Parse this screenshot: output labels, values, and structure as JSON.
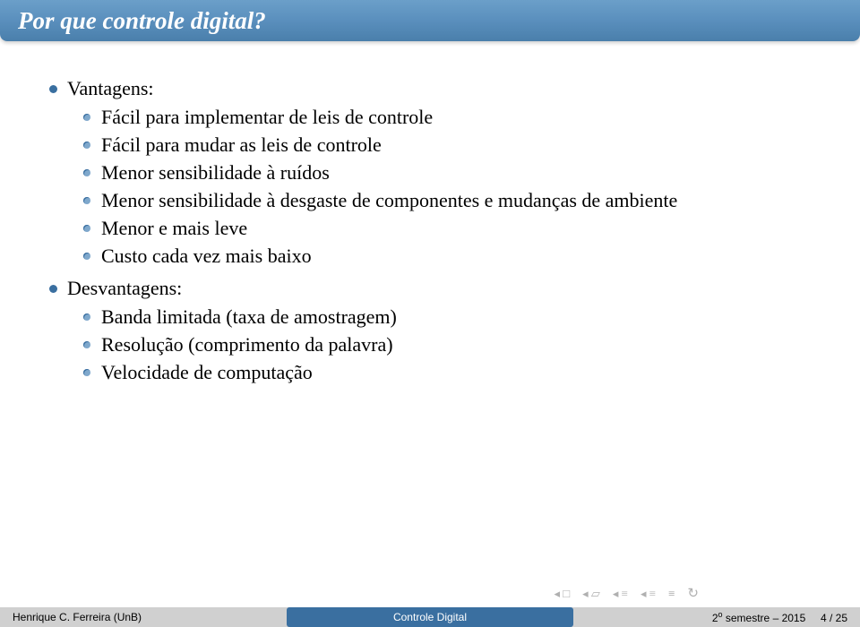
{
  "title": "Por que controle digital?",
  "list": {
    "advantages_label": "Vantagens:",
    "advantages": [
      "Fácil para implementar de leis de controle",
      "Fácil para mudar as leis de controle",
      "Menor sensibilidade à ruídos",
      "Menor sensibilidade à desgaste de componentes e mudanças de ambiente",
      "Menor e mais leve",
      "Custo cada vez mais baixo"
    ],
    "disadvantages_label": "Desvantagens:",
    "disadvantages": [
      "Banda limitada (taxa de amostragem)",
      "Resolução (comprimento da palavra)",
      "Velocidade de computação"
    ]
  },
  "footer": {
    "left": "Henrique C. Ferreira (UnB)",
    "center": "Controle Digital",
    "right_prefix": "2",
    "right_sup": "o",
    "right_suffix": " semestre – 2015",
    "page_current": "4",
    "page_sep": " / ",
    "page_total": "25"
  },
  "colors": {
    "title_bar_top": "#6b9fc9",
    "title_bar_bottom": "#4a7fab",
    "title_text": "#ffffff",
    "bullet_top": "#3a6fa0",
    "bullet_sub": "#7fa8cc",
    "footer_bg": "#d0d0d0",
    "footer_center_bg": "#3a6fa0",
    "nav_icon": "#b0b0b0"
  }
}
